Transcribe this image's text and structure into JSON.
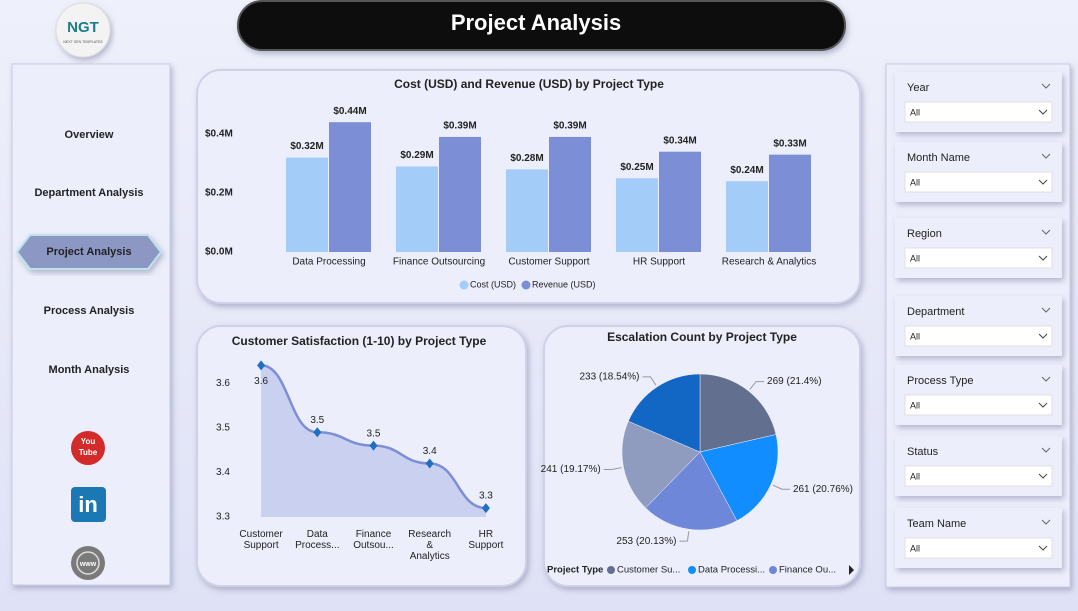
{
  "header": {
    "title": "Project Analysis"
  },
  "logo": {
    "text": "NGT",
    "subtitle": "NEXT GEN TEMPLATES"
  },
  "nav": {
    "items": [
      "Overview",
      "Department Analysis",
      "Project Analysis",
      "Process Analysis",
      "Month Analysis"
    ],
    "active": 2
  },
  "social": {
    "youtube": [
      "You",
      "Tube"
    ],
    "linkedin": "in",
    "web": "www"
  },
  "filters": [
    {
      "label": "Year",
      "value": "All"
    },
    {
      "label": "Month Name",
      "value": "All"
    },
    {
      "label": "Region",
      "value": "All"
    },
    {
      "label": "Department",
      "value": "All"
    },
    {
      "label": "Process Type",
      "value": "All"
    },
    {
      "label": "Status",
      "value": "All"
    },
    {
      "label": "Team Name",
      "value": "All"
    }
  ],
  "chart_data": [
    {
      "type": "bar",
      "title": "Cost (USD) and Revenue (USD) by Project Type",
      "categories": [
        "Data Processing",
        "Finance Outsourcing",
        "Customer Support",
        "HR Support",
        "Research & Analytics"
      ],
      "series": [
        {
          "name": "Cost (USD)",
          "color": "#a3cdf8",
          "values": [
            320000,
            290000,
            280000,
            250000,
            240000
          ],
          "value_labels": [
            "$0.32M",
            "$0.29M",
            "$0.28M",
            "$0.25M",
            "$0.24M"
          ]
        },
        {
          "name": "Revenue (USD)",
          "color": "#7b8ed6",
          "values": [
            440000,
            390000,
            390000,
            340000,
            330000
          ],
          "value_labels": [
            "$0.44M",
            "$0.39M",
            "$0.39M",
            "$0.34M",
            "$0.33M"
          ]
        }
      ],
      "ylim": [
        0,
        480000
      ],
      "yticks": [
        {
          "value": 0,
          "label": "$0.0M"
        },
        {
          "value": 200000,
          "label": "$0.2M"
        },
        {
          "value": 400000,
          "label": "$0.4M"
        }
      ],
      "grid": false,
      "legend": "bottom"
    },
    {
      "type": "line",
      "title": "Customer Satisfaction (1-10) by Project Type",
      "categories": [
        "Customer Support",
        "Data Process...",
        "Finance Outsou...",
        "Research & Analytics",
        "HR Support"
      ],
      "values": [
        3.64,
        3.49,
        3.46,
        3.42,
        3.32
      ],
      "value_labels": [
        "3.6",
        "3.5",
        "3.5",
        "3.4",
        "3.3"
      ],
      "color": "#7b8ed6",
      "marker_color": "#1f6fc5",
      "ylim": [
        3.3,
        3.67
      ],
      "yticks": [
        3.3,
        3.4,
        3.5,
        3.6
      ],
      "grid": false
    },
    {
      "type": "pie",
      "title": "Escalation Count by Project Type",
      "legend_title": "Project Type",
      "categories": [
        "Customer Su...",
        "Data Processi...",
        "Finance Ou...",
        null,
        null
      ],
      "values": [
        269,
        261,
        253,
        241,
        233
      ],
      "value_labels": [
        "269 (21.4%)",
        "261 (20.76%)",
        "253 (20.13%)",
        "241 (19.17%)",
        "233 (18.54%)"
      ],
      "colors": [
        "#636f8e",
        "#118dff",
        "#6f87d8",
        "#8f9bbf",
        "#1266c4"
      ],
      "legend": "bottom"
    }
  ]
}
